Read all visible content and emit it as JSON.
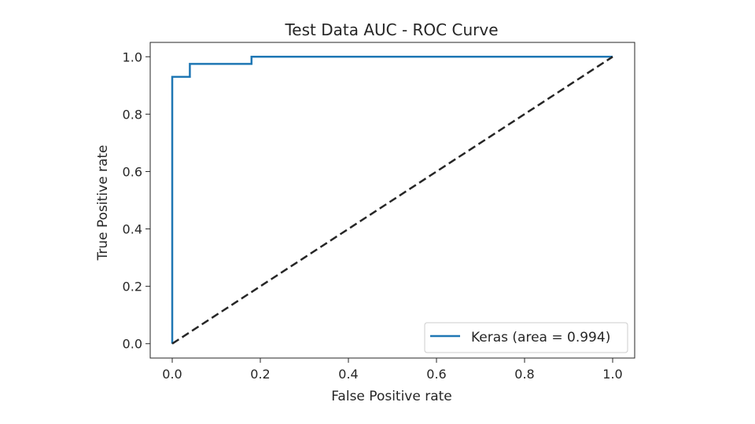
{
  "chart_data": {
    "type": "line",
    "title": "Test Data AUC - ROC Curve",
    "xlabel": "False Positive rate",
    "ylabel": "True Positive rate",
    "xlim": [
      -0.05,
      1.05
    ],
    "ylim": [
      -0.05,
      1.05
    ],
    "xticks": [
      0.0,
      0.2,
      0.4,
      0.6,
      0.8,
      1.0
    ],
    "yticks": [
      0.0,
      0.2,
      0.4,
      0.6,
      0.8,
      1.0
    ],
    "xtick_labels": [
      "0.0",
      "0.2",
      "0.4",
      "0.6",
      "0.8",
      "1.0"
    ],
    "ytick_labels": [
      "0.0",
      "0.2",
      "0.4",
      "0.6",
      "0.8",
      "1.0"
    ],
    "grid": false,
    "legend_position": "lower-right",
    "series": [
      {
        "name": "Keras (area = 0.994)",
        "color": "#1f77b4",
        "style": "solid",
        "x": [
          0.0,
          0.0,
          0.0,
          0.04,
          0.04,
          0.18,
          0.18,
          1.0
        ],
        "y": [
          0.0,
          0.93,
          0.93,
          0.93,
          0.975,
          0.975,
          1.0,
          1.0
        ]
      },
      {
        "color": "#262626",
        "style": "dashed",
        "x": [
          0.0,
          1.0
        ],
        "y": [
          0.0,
          1.0
        ]
      }
    ]
  }
}
